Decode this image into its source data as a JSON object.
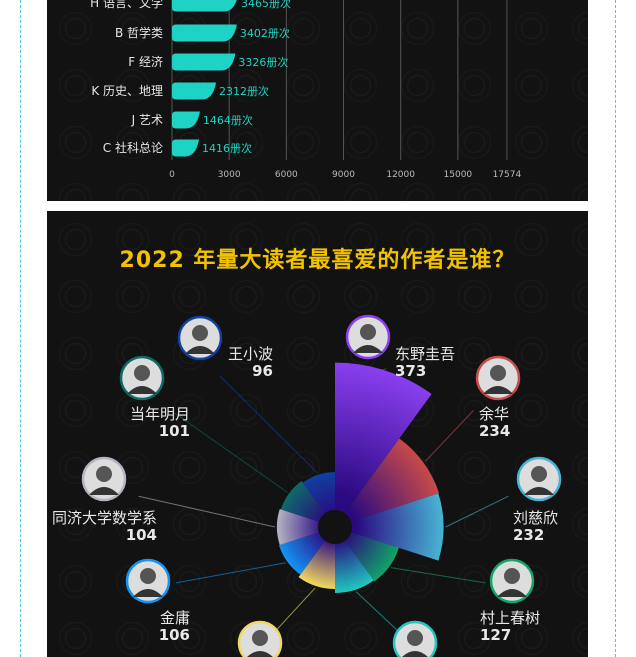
{
  "colors": {
    "bar": "#1ed3c3",
    "title": "#f2c200",
    "label": "#e6e6e6",
    "value": "#1ed3c3"
  },
  "chart_data": [
    {
      "type": "bar",
      "orientation": "horizontal",
      "categories": [
        "H 语言、文学",
        "B 哲学类",
        "F 经济",
        "K 历史、地理",
        "J 艺术",
        "C 社科总论"
      ],
      "values": [
        3465,
        3402,
        3326,
        2312,
        1464,
        1416
      ],
      "value_labels": [
        "3465册次",
        "3402册次",
        "3326册次",
        "2312册次",
        "1464册次",
        "1416册次"
      ],
      "xticks": [
        "0",
        "3000",
        "6000",
        "9000",
        "12000",
        "15000",
        "17574"
      ],
      "xlim": [
        0,
        17574
      ],
      "grid": true
    },
    {
      "type": "pie",
      "variant": "rose",
      "title": "2022 年量大读者最喜爱的作者是谁？",
      "slices": [
        {
          "name": "东野圭吾",
          "value": 373,
          "color": "#8a3ff0"
        },
        {
          "name": "余华",
          "value": 234,
          "color": "#c84a4a"
        },
        {
          "name": "刘慈欣",
          "value": 232,
          "color": "#48b4d4"
        },
        {
          "name": "村上春树",
          "value": 127,
          "color": "#12a468"
        },
        {
          "name": "",
          "value": 124,
          "color": "#20c8c0"
        },
        {
          "name": "",
          "value": 114,
          "color": "#f2d860"
        },
        {
          "name": "金庸",
          "value": 106,
          "color": "#1494f4"
        },
        {
          "name": "同济大学数学系",
          "value": 104,
          "color": "#b4b4c4"
        },
        {
          "name": "当年明月",
          "value": 101,
          "color": "#0e6a6a"
        },
        {
          "name": "王小波",
          "value": 96,
          "color": "#1040a0"
        }
      ]
    }
  ]
}
